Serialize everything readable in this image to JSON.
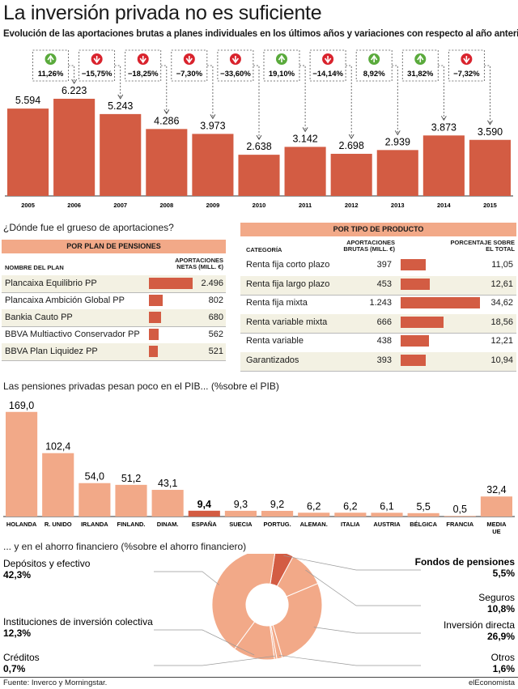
{
  "header": {
    "title": "La inversión privada no es suficiente",
    "subtitle": "Evolución de las aportaciones brutas a planes individuales en los últimos años y variaciones con respecto al año anterior"
  },
  "colors": {
    "bar": "#d35c43",
    "bar_light": "#f2a988",
    "up": "#5aaa3c",
    "down": "#d9232d",
    "row_alt": "#f3f1e3"
  },
  "chart_data": [
    {
      "type": "bar",
      "categories": [
        "2005",
        "2006",
        "2007",
        "2008",
        "2009",
        "2010",
        "2011",
        "2012",
        "2013",
        "2014",
        "2015"
      ],
      "values": [
        5594,
        6223,
        5243,
        4286,
        3973,
        2638,
        3142,
        2698,
        2939,
        3873,
        3590
      ],
      "value_labels": [
        "5.594",
        "6.223",
        "5.243",
        "4.286",
        "3.973",
        "2.638",
        "3.142",
        "2.698",
        "2.939",
        "3.873",
        "3.590"
      ],
      "changes": [
        {
          "year": "2006",
          "label": "11,26%",
          "dir": "up"
        },
        {
          "year": "2007",
          "label": "−15,75%",
          "dir": "down"
        },
        {
          "year": "2008",
          "label": "−18,25%",
          "dir": "down"
        },
        {
          "year": "2009",
          "label": "−7,30%",
          "dir": "down"
        },
        {
          "year": "2010",
          "label": "−33,60%",
          "dir": "down"
        },
        {
          "year": "2011",
          "label": "19,10%",
          "dir": "up"
        },
        {
          "year": "2012",
          "label": "−14,14%",
          "dir": "down"
        },
        {
          "year": "2013",
          "label": "8,92%",
          "dir": "up"
        },
        {
          "year": "2014",
          "label": "31,82%",
          "dir": "up"
        },
        {
          "year": "2015",
          "label": "−7,32%",
          "dir": "down"
        }
      ],
      "ylim": [
        0,
        7000
      ]
    },
    {
      "type": "table",
      "section_title": "¿Dónde fue el grueso de aportaciones?",
      "band": "POR PLAN DE PENSIONES",
      "columns": [
        "NOMBRE DEL PLAN",
        "APORTACIONES NETAS (MILL. €)"
      ],
      "rows": [
        {
          "name": "Plancaixa Equilibrio PP",
          "value": 2496,
          "label": "2.496"
        },
        {
          "name": "Plancaixa Ambición Global PP",
          "value": 802,
          "label": "802"
        },
        {
          "name": "Bankia Cauto PP",
          "value": 680,
          "label": "680"
        },
        {
          "name": "BBVA Multiactivo Conservador PP",
          "value": 562,
          "label": "562"
        },
        {
          "name": "BBVA Plan Liquidez PP",
          "value": 521,
          "label": "521"
        }
      ]
    },
    {
      "type": "table",
      "band": "POR TIPO DE PRODUCTO",
      "columns": [
        "CATEGORÍA",
        "APORTACIONES BRUTAS (MILL. €)",
        "PORCENTAJE SOBRE EL TOTAL"
      ],
      "rows": [
        {
          "name": "Renta fija corto plazo",
          "value": 397,
          "value_label": "397",
          "pct": 11.05,
          "pct_label": "11,05"
        },
        {
          "name": "Renta fija largo plazo",
          "value": 453,
          "value_label": "453",
          "pct": 12.61,
          "pct_label": "12,61"
        },
        {
          "name": "Renta fija mixta",
          "value": 1243,
          "value_label": "1.243",
          "pct": 34.62,
          "pct_label": "34,62"
        },
        {
          "name": "Renta variable mixta",
          "value": 666,
          "value_label": "666",
          "pct": 18.56,
          "pct_label": "18,56"
        },
        {
          "name": "Renta variable",
          "value": 438,
          "value_label": "438",
          "pct": 12.21,
          "pct_label": "12,21"
        },
        {
          "name": "Garantizados",
          "value": 393,
          "value_label": "393",
          "pct": 10.94,
          "pct_label": "10,94"
        }
      ]
    },
    {
      "type": "bar",
      "title": "Las pensiones privadas pesan poco en el PIB... (%sobre el PIB)",
      "categories": [
        "HOLANDA",
        "R. UNIDO",
        "IRLANDA",
        "FINLAND.",
        "DINAM.",
        "ESPAÑA",
        "SUECIA",
        "PORTUG.",
        "ALEMAN.",
        "ITALIA",
        "AUSTRIA",
        "BÉLGICA",
        "FRANCIA",
        "MEDIA UE"
      ],
      "values": [
        169.0,
        102.4,
        54.0,
        51.2,
        43.1,
        9.4,
        9.3,
        9.2,
        6.2,
        6.2,
        6.1,
        5.5,
        0.5,
        32.4
      ],
      "value_labels": [
        "169,0",
        "102,4",
        "54,0",
        "51,2",
        "43,1",
        "9,4",
        "9,3",
        "9,2",
        "6,2",
        "6,2",
        "6,1",
        "5,5",
        "0,5",
        "32,4"
      ],
      "highlight": "ESPAÑA",
      "ylim": [
        0,
        170
      ]
    },
    {
      "type": "pie",
      "title": "... y en el ahorro financiero (%sobre el ahorro financiero)",
      "slices": [
        {
          "name": "Fondos de pensiones",
          "value": 5.5,
          "label": "5,5%",
          "highlight": true
        },
        {
          "name": "Seguros",
          "value": 10.8,
          "label": "10,8%"
        },
        {
          "name": "Inversión directa",
          "value": 26.9,
          "label": "26,9%"
        },
        {
          "name": "Otros",
          "value": 1.6,
          "label": "1,6%"
        },
        {
          "name": "Créditos",
          "value": 0.7,
          "label": "0,7%"
        },
        {
          "name": "Instituciones de inversión colectiva",
          "value": 12.3,
          "label": "12,3%"
        },
        {
          "name": "Depósitos y efectivo",
          "value": 42.3,
          "label": "42,3%"
        }
      ]
    }
  ],
  "footer": {
    "source": "Fuente: Inverco y Morningstar.",
    "brand": "elEconomista"
  }
}
